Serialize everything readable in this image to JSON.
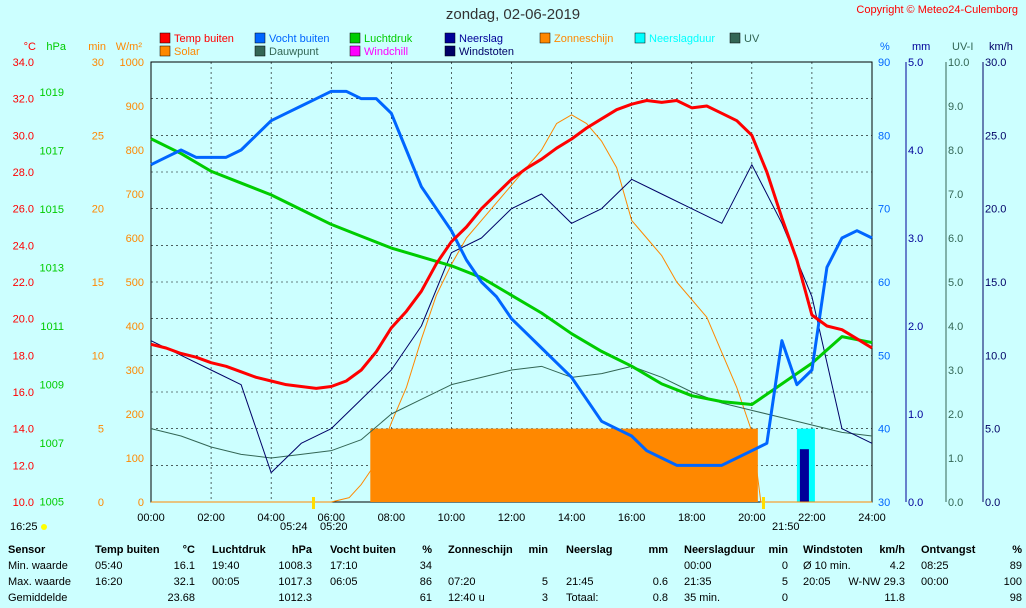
{
  "title": "zondag, 02-06-2019",
  "copyright": "Copyright © Meteo24-Culemborg",
  "sun_times": {
    "left": "16:25",
    "sunrise": "05:24",
    "sunrise2": "05:20",
    "sunset": "21:50"
  },
  "colors": {
    "temp": "#ff0000",
    "humidity": "#0066ff",
    "pressure": "#00cc00",
    "rain": "#000099",
    "sunshine": "#ff8800",
    "rain_duration": "#00ffff",
    "uv": "#336655",
    "solar": "#ff8800",
    "dewpoint": "#336655",
    "windchill": "#ff00ff",
    "gust": "#000066",
    "bg": "#ccffff",
    "plot_bg": "#ccffff"
  },
  "chart_data": {
    "type": "line",
    "x_range_hours": [
      0,
      24
    ],
    "x_ticks": [
      "00:00",
      "02:00",
      "04:00",
      "06:00",
      "08:00",
      "10:00",
      "12:00",
      "14:00",
      "16:00",
      "18:00",
      "20:00",
      "22:00",
      "24:00"
    ],
    "legend": [
      {
        "key": "temp",
        "label": "Temp buiten"
      },
      {
        "key": "humidity",
        "label": "Vocht buiten"
      },
      {
        "key": "pressure",
        "label": "Luchtdruk"
      },
      {
        "key": "rain",
        "label": "Neerslag"
      },
      {
        "key": "sunshine",
        "label": "Zonneschijn"
      },
      {
        "key": "rain_duration",
        "label": "Neerslagduur"
      },
      {
        "key": "uv",
        "label": "UV"
      },
      {
        "key": "solar",
        "label": "Solar"
      },
      {
        "key": "dewpoint",
        "label": "Dauwpunt"
      },
      {
        "key": "windchill",
        "label": "Windchill"
      },
      {
        "key": "gust",
        "label": "Windstoten"
      }
    ],
    "axes_left": [
      {
        "unit": "°C",
        "color": "#ff0000",
        "min": 10,
        "max": 34,
        "ticks": [
          "34.0",
          "32.0",
          "30.0",
          "28.0",
          "26.0",
          "24.0",
          "22.0",
          "20.0",
          "18.0",
          "16.0",
          "14.0",
          "12.0",
          "10.0"
        ]
      },
      {
        "unit": "hPa",
        "color": "#00cc00",
        "ticks": [
          "1019",
          "1017",
          "1015",
          "1013",
          "1011",
          "1009",
          "1007",
          "1005"
        ]
      },
      {
        "unit": "min",
        "color": "#ff8800",
        "min": 0,
        "max": 30,
        "ticks": [
          "30",
          "25",
          "20",
          "15",
          "10",
          "5",
          "0"
        ]
      },
      {
        "unit": "W/m²",
        "color": "#ff8800",
        "min": 0,
        "max": 1000,
        "ticks": [
          "1000",
          "900",
          "800",
          "700",
          "600",
          "500",
          "400",
          "300",
          "200",
          "100",
          "0"
        ]
      }
    ],
    "axes_right": [
      {
        "unit": "%",
        "color": "#0066ff",
        "min": 30,
        "max": 90,
        "ticks": [
          "90",
          "80",
          "70",
          "60",
          "50",
          "40",
          "30"
        ]
      },
      {
        "unit": "mm",
        "color": "#000099",
        "min": 0,
        "max": 5,
        "ticks": [
          "5.0",
          "4.0",
          "3.0",
          "2.0",
          "1.0",
          "0.0"
        ]
      },
      {
        "unit": "UV-I",
        "color": "#336655",
        "min": 0,
        "max": 10,
        "ticks": [
          "10.0",
          "9.0",
          "8.0",
          "7.0",
          "6.0",
          "5.0",
          "4.0",
          "3.0",
          "2.0",
          "1.0",
          "0.0"
        ]
      },
      {
        "unit": "km/h",
        "color": "#000066",
        "min": 0,
        "max": 30,
        "ticks": [
          "30.0",
          "25.0",
          "20.0",
          "15.0",
          "10.0",
          "5.0",
          "0.0"
        ]
      }
    ],
    "series": {
      "temp": {
        "x": [
          0,
          0.5,
          1,
          1.5,
          2,
          2.5,
          3,
          3.5,
          4,
          4.5,
          5,
          5.5,
          6,
          6.5,
          7,
          7.5,
          8,
          8.5,
          9,
          9.5,
          10,
          10.5,
          11,
          11.5,
          12,
          12.5,
          13,
          13.5,
          14,
          14.5,
          15,
          15.5,
          16,
          16.5,
          17,
          17.5,
          18,
          18.5,
          19,
          19.5,
          20,
          20.5,
          21,
          21.5,
          22,
          22.5,
          23,
          23.5,
          24
        ],
        "y": [
          18.6,
          18.4,
          18.1,
          17.9,
          17.6,
          17.4,
          17.1,
          16.8,
          16.6,
          16.4,
          16.3,
          16.2,
          16.3,
          16.6,
          17.2,
          18.2,
          19.5,
          20.4,
          21.5,
          23.0,
          24.2,
          25.0,
          26.0,
          26.8,
          27.6,
          28.2,
          28.7,
          29.3,
          29.8,
          30.4,
          30.9,
          31.4,
          31.7,
          31.9,
          31.8,
          31.9,
          31.5,
          31.6,
          31.2,
          30.8,
          30.0,
          28.0,
          25.5,
          23.2,
          20.2,
          19.6,
          19.4,
          18.9,
          18.4
        ]
      },
      "humidity": {
        "x": [
          0,
          0.5,
          1,
          1.5,
          2,
          2.5,
          3,
          3.5,
          4,
          4.5,
          5,
          5.5,
          6,
          6.5,
          7,
          7.5,
          8,
          8.5,
          9,
          9.5,
          10,
          10.5,
          11,
          11.5,
          12,
          12.5,
          13,
          13.5,
          14,
          14.5,
          15,
          15.5,
          16,
          16.5,
          17,
          17.5,
          18,
          18.5,
          19,
          19.5,
          20,
          20.5,
          21,
          21.5,
          22,
          22.5,
          23,
          23.5,
          24
        ],
        "y": [
          76,
          77,
          78,
          77,
          77,
          77,
          78,
          80,
          82,
          83,
          84,
          85,
          86,
          86,
          85,
          85,
          83,
          78,
          73,
          70,
          67,
          63,
          60,
          58,
          55,
          53,
          51,
          49,
          47,
          44,
          41,
          40,
          39,
          37,
          36,
          35,
          35,
          35,
          35,
          36,
          37,
          38,
          52,
          46,
          48,
          62,
          66,
          67,
          66
        ]
      },
      "pressure": {
        "x": [
          0,
          1,
          2,
          3,
          4,
          5,
          6,
          7,
          8,
          9,
          10,
          11,
          12,
          13,
          14,
          15,
          16,
          17,
          18,
          19,
          20,
          21,
          22,
          23,
          24
        ],
        "y": [
          1017.3,
          1016.8,
          1016.2,
          1015.8,
          1015.4,
          1014.9,
          1014.4,
          1014.0,
          1013.6,
          1013.3,
          1013.0,
          1012.6,
          1012.0,
          1011.4,
          1010.7,
          1010.1,
          1009.6,
          1009.0,
          1008.6,
          1008.4,
          1008.3,
          1009.0,
          1009.7,
          1010.6,
          1010.4
        ]
      },
      "solar": {
        "x": [
          0,
          6,
          6.6,
          7,
          7.5,
          8,
          8.5,
          9,
          9.5,
          10,
          10.5,
          11,
          11.5,
          12,
          12.5,
          13,
          13.5,
          14,
          14.5,
          15,
          15.5,
          16,
          16.5,
          17,
          17.5,
          18,
          18.5,
          19,
          19.5,
          20,
          20.3,
          24
        ],
        "y": [
          0,
          0,
          10,
          40,
          90,
          180,
          260,
          370,
          470,
          540,
          600,
          640,
          680,
          720,
          760,
          800,
          860,
          880,
          860,
          820,
          760,
          640,
          600,
          560,
          500,
          460,
          420,
          340,
          260,
          160,
          0,
          0
        ]
      },
      "dewpoint": {
        "x": [
          0,
          1,
          2,
          3,
          4,
          5,
          6,
          7,
          8,
          9,
          10,
          11,
          12,
          13,
          14,
          15,
          16,
          17,
          18,
          19,
          20,
          21,
          22,
          23,
          24
        ],
        "y": [
          14.0,
          13.6,
          13.0,
          12.6,
          12.4,
          12.6,
          12.8,
          13.4,
          14.8,
          15.6,
          16.4,
          16.8,
          17.2,
          17.4,
          16.8,
          17.0,
          17.4,
          16.8,
          16.0,
          15.4,
          15.0,
          14.6,
          14.2,
          13.8,
          13.6
        ]
      },
      "gust": {
        "x": [
          0,
          1,
          2,
          3,
          4,
          5,
          6,
          7,
          8,
          9,
          10,
          11,
          12,
          13,
          14,
          15,
          16,
          17,
          18,
          19,
          20,
          21,
          22,
          23,
          24
        ],
        "y": [
          11,
          10,
          9,
          8,
          2,
          4,
          5,
          7,
          9,
          12,
          17,
          18,
          20,
          21,
          19,
          20,
          22,
          21,
          20,
          19,
          23,
          19,
          14,
          5,
          4
        ]
      },
      "uv": {
        "x": [
          0,
          24
        ],
        "y": [
          0,
          0
        ]
      },
      "windchill": {
        "x": [
          0,
          24
        ],
        "y": [
          0,
          0
        ]
      }
    },
    "sunshine_blocks": [
      {
        "from": 7.3,
        "to": 20.2,
        "minutes": 5
      }
    ],
    "rain_duration_blocks": [
      {
        "from": 21.5,
        "to": 22.1
      }
    ],
    "rain_bars": [
      {
        "from": 21.6,
        "to": 21.9,
        "mm": 0.6
      }
    ]
  },
  "table": {
    "headers": [
      "Sensor",
      "Temp buiten",
      "°C",
      "Luchtdruk",
      "hPa",
      "Vocht buiten",
      "%",
      "Zonneschijn",
      "min",
      "Neerslag",
      "mm",
      "Neerslagduur",
      "min",
      "Windstoten",
      "km/h",
      "Ontvangst",
      "%"
    ],
    "rows": [
      [
        "Min. waarde",
        "05:40",
        "16.1",
        "19:40",
        "1008.3",
        "17:10",
        "34",
        "",
        "",
        "",
        "",
        "00:00",
        "0",
        "Ø 10 min.",
        "4.2",
        "08:25",
        "89"
      ],
      [
        "Max. waarde",
        "16:20",
        "32.1",
        "00:05",
        "1017.3",
        "06:05",
        "86",
        "07:20",
        "5",
        "21:45",
        "0.6",
        "21:35",
        "5",
        "20:05",
        "W-NW 29.3",
        "00:00",
        "100"
      ],
      [
        "Gemiddelde",
        "",
        "23.68",
        "",
        "1012.3",
        "",
        "61",
        "12:40 u",
        "3",
        "Totaal:",
        "0.8",
        "35 min.",
        "0",
        "",
        "11.8",
        "",
        "98"
      ]
    ]
  }
}
